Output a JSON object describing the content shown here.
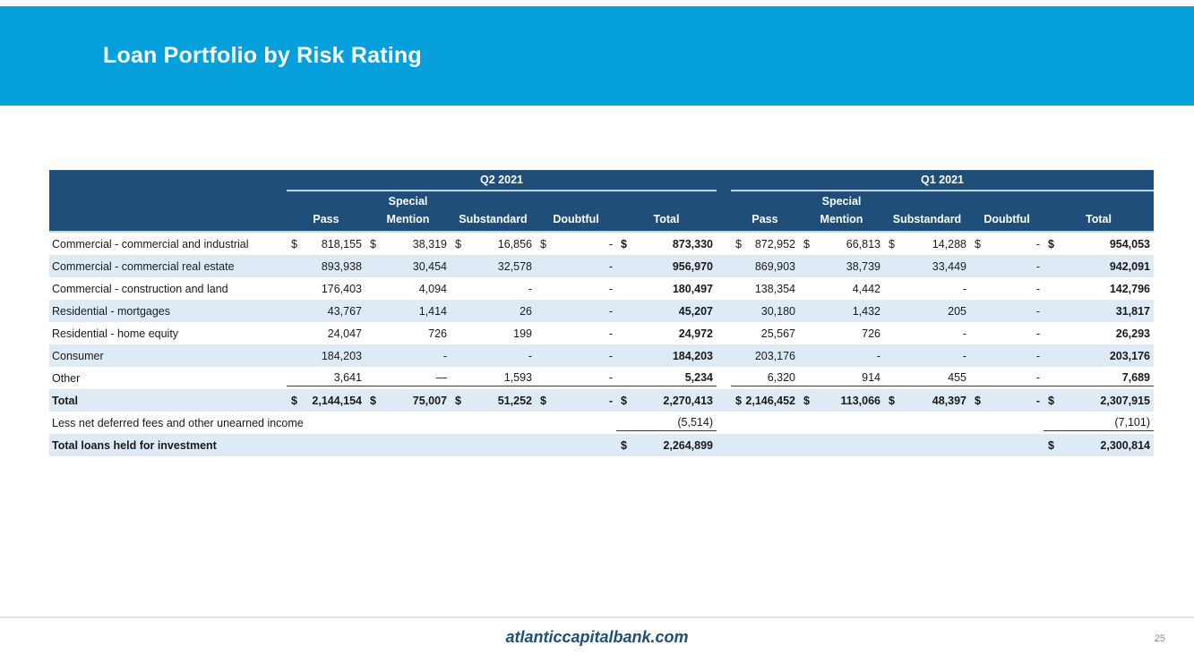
{
  "slide": {
    "title": "Loan Portfolio by Risk Rating",
    "footer_link": "atlanticcapitalbank.com",
    "page_number": "25",
    "colors": {
      "banner_blue": "#05A0DC",
      "header_navy": "#1F4E79",
      "row_stripe": "#DEEBF7",
      "header_underline": "#BDD7EE"
    }
  },
  "table": {
    "group_headers": [
      "Q2 2021",
      "Q1 2021"
    ],
    "column_headers": [
      "Pass",
      "Special Mention",
      "Substandard",
      "Doubtful",
      "Total"
    ],
    "rows": [
      {
        "label": "Commercial - commercial and industrial",
        "type": "data",
        "dollar_all": true,
        "values": [
          "818,155",
          "38,319",
          "16,856",
          "-",
          "873,330",
          "872,952",
          "66,813",
          "14,288",
          "-",
          "954,053"
        ]
      },
      {
        "label": "Commercial - commercial real estate",
        "type": "data",
        "values": [
          "893,938",
          "30,454",
          "32,578",
          "-",
          "956,970",
          "869,903",
          "38,739",
          "33,449",
          "-",
          "942,091"
        ]
      },
      {
        "label": "Commercial - construction and land",
        "type": "data",
        "values": [
          "176,403",
          "4,094",
          "-",
          "-",
          "180,497",
          "138,354",
          "4,442",
          "-",
          "-",
          "142,796"
        ]
      },
      {
        "label": "Residential - mortgages",
        "type": "data",
        "values": [
          "43,767",
          "1,414",
          "26",
          "-",
          "45,207",
          "30,180",
          "1,432",
          "205",
          "-",
          "31,817"
        ]
      },
      {
        "label": "Residential - home equity",
        "type": "data",
        "values": [
          "24,047",
          "726",
          "199",
          "-",
          "24,972",
          "25,567",
          "726",
          "-",
          "-",
          "26,293"
        ]
      },
      {
        "label": "Consumer",
        "type": "data",
        "values": [
          "184,203",
          "-",
          "-",
          "-",
          "184,203",
          "203,176",
          "-",
          "-",
          "-",
          "203,176"
        ]
      },
      {
        "label": "Other",
        "type": "data",
        "underline_all": true,
        "values": [
          "3,641",
          "—",
          "1,593",
          "-",
          "5,234",
          "6,320",
          "914",
          "455",
          "-",
          "7,689"
        ]
      },
      {
        "label": "Total",
        "type": "total",
        "dollar_all": true,
        "values": [
          "2,144,154",
          "75,007",
          "51,252",
          "-",
          "2,270,413",
          "2,146,452",
          "113,066",
          "48,397",
          "-",
          "2,307,915"
        ]
      },
      {
        "label": "Less net deferred fees and other unearned income",
        "type": "less",
        "underline_totals": true,
        "values": [
          "",
          "",
          "",
          "",
          "(5,514)",
          "",
          "",
          "",
          "",
          "(7,101)"
        ]
      },
      {
        "label": "Total loans held for investment",
        "type": "grand",
        "dollar_totals": true,
        "values": [
          "",
          "",
          "",
          "",
          "2,264,899",
          "",
          "",
          "",
          "",
          "2,300,814"
        ]
      }
    ]
  }
}
